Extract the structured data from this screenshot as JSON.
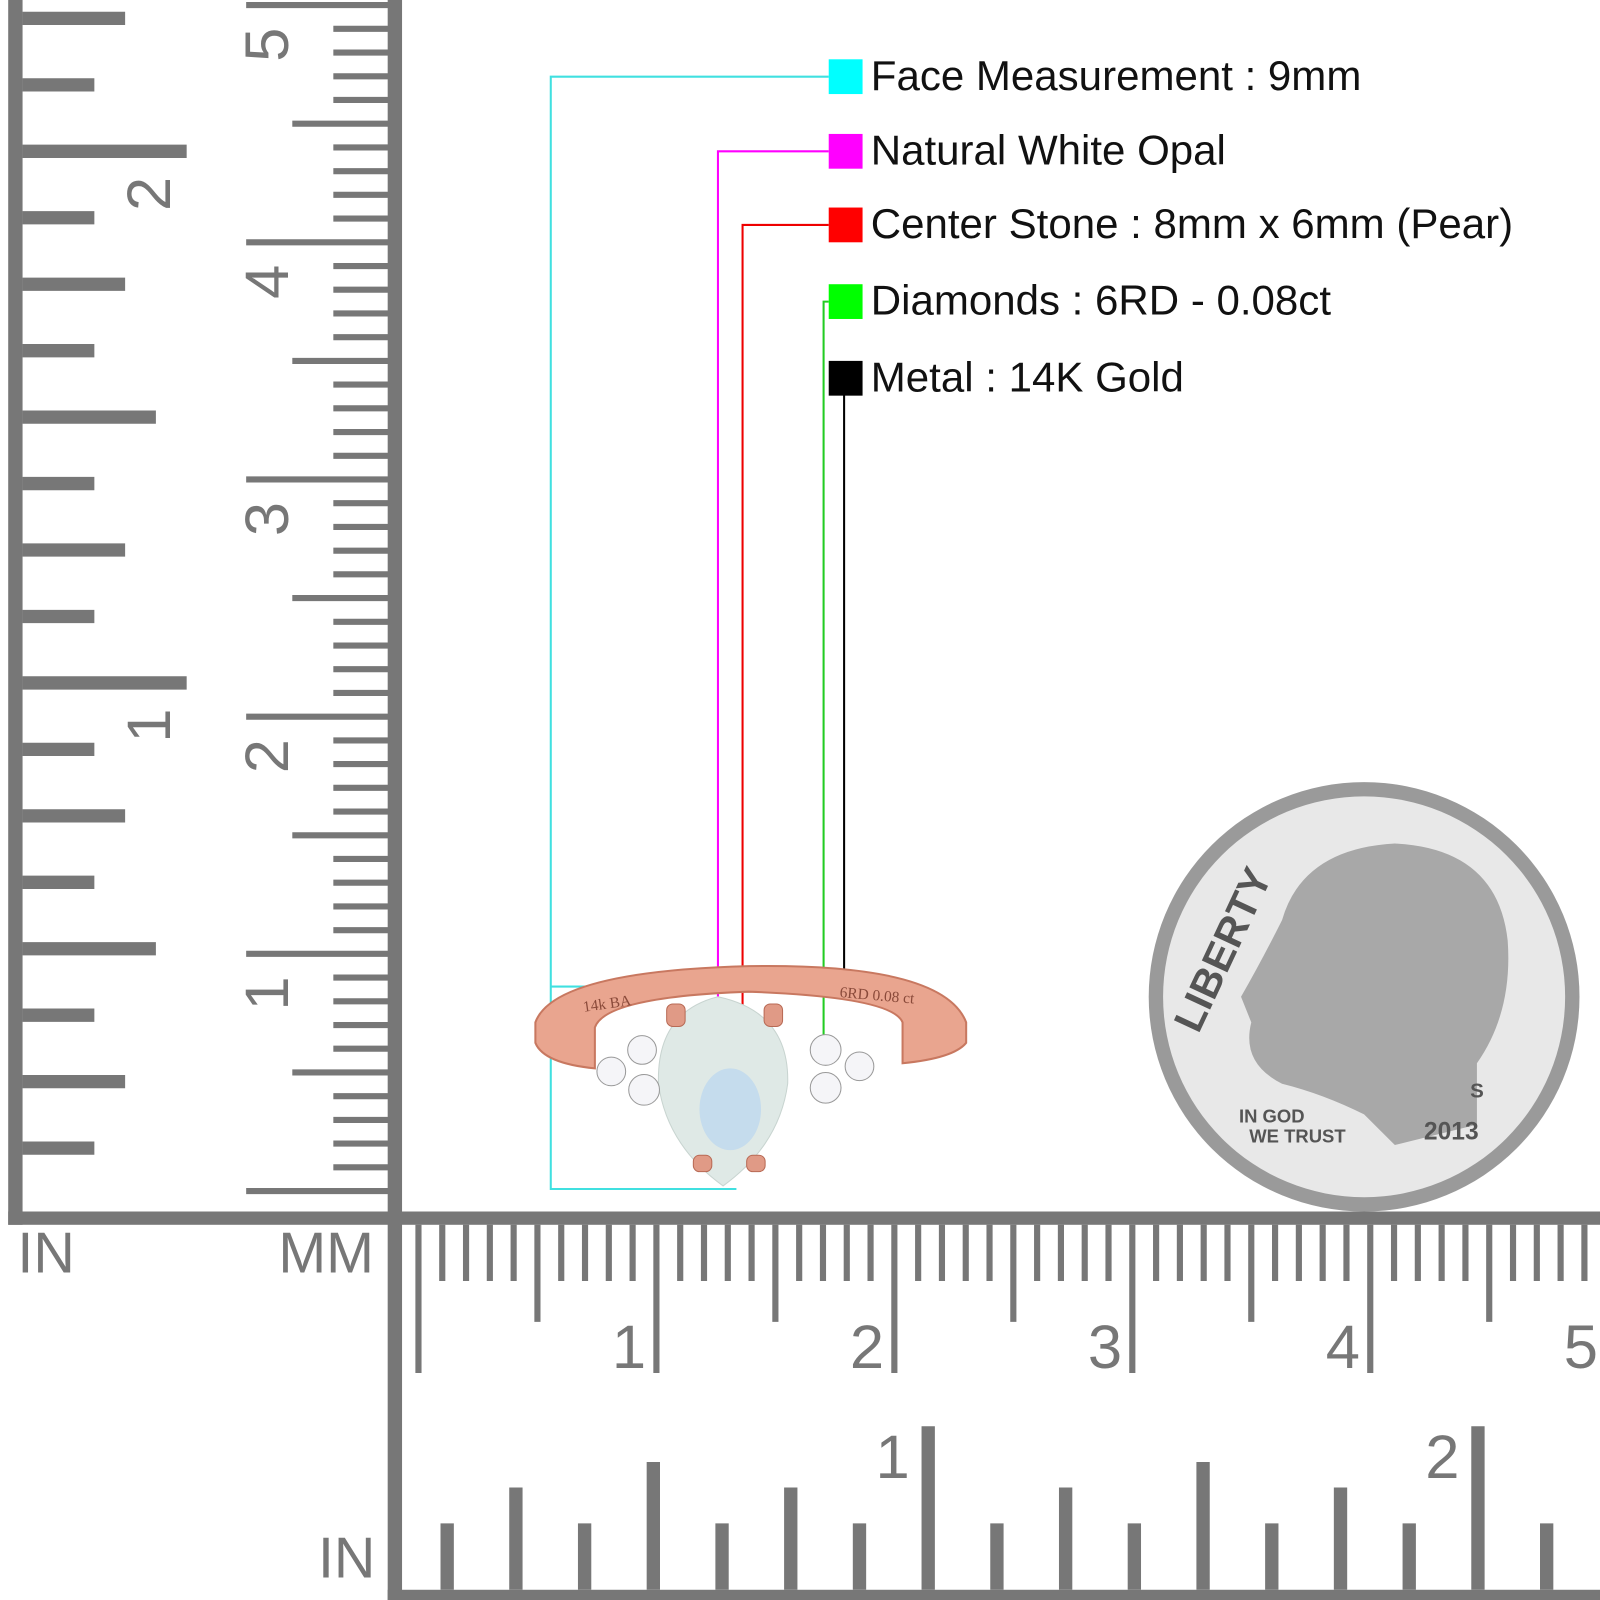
{
  "legend": [
    {
      "label": "Face Measurement : 9mm",
      "color": "#00ffff"
    },
    {
      "label": "Natural White Opal",
      "color": "#ff00ff"
    },
    {
      "label": "Center Stone : 8mm x 6mm (Pear)",
      "color": "#ff0000"
    },
    {
      "label": "Diamonds : 6RD - 0.08ct",
      "color": "#00ff00"
    },
    {
      "label": "Metal : 14K Gold",
      "color": "#000000"
    }
  ],
  "left_ruler": {
    "unit_in": "IN",
    "unit_mm": "MM",
    "inch_labels": [
      "1",
      "2"
    ],
    "cm_labels": [
      "1",
      "2",
      "3",
      "4",
      "5"
    ]
  },
  "bottom_ruler": {
    "cm_labels": [
      "1",
      "2",
      "3",
      "4",
      "5"
    ],
    "inch_labels": [
      "1",
      "2"
    ],
    "unit_in": "IN"
  },
  "ring": {
    "engraving_left": "14k BA",
    "engraving_right": "6RD 0.08 ct"
  },
  "coin": {
    "legend": "LIBERTY",
    "motto_top": "IN GOD",
    "motto_bottom": "WE TRUST",
    "year": "2013",
    "mint_mark": "S"
  }
}
